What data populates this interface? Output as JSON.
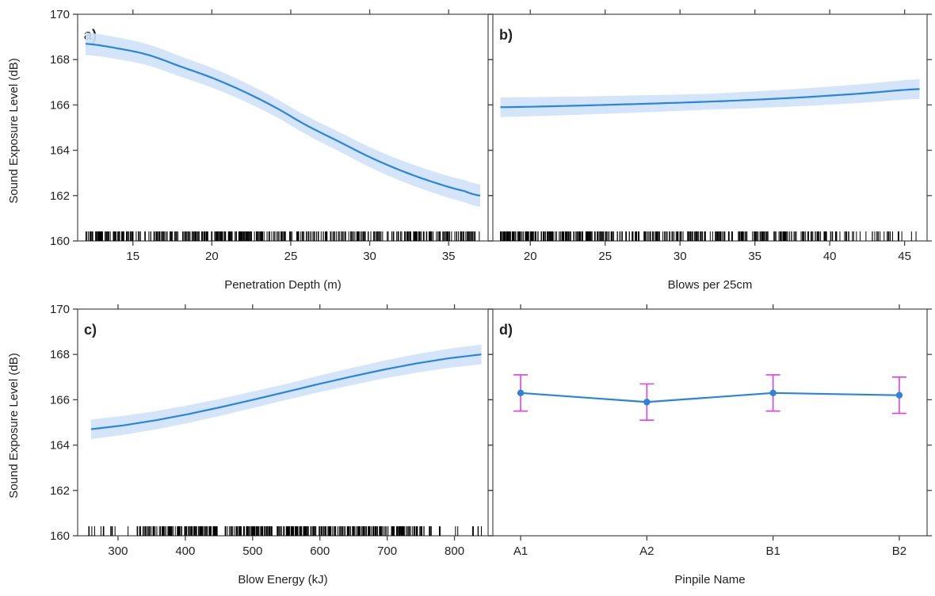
{
  "chart_data": [
    {
      "panel": "a)",
      "type": "line",
      "xlabel": "Penetration Depth (m)",
      "ylabel": "Sound Exposure Level (dB)",
      "xlim": [
        11.5,
        37.5
      ],
      "ylim": [
        160,
        170
      ],
      "xticks": [
        15,
        20,
        25,
        30,
        35
      ],
      "yticks": [
        160,
        162,
        164,
        166,
        168,
        170
      ],
      "x": [
        12,
        14,
        16,
        18,
        20,
        22,
        24,
        26,
        28,
        30,
        32,
        34,
        36,
        37
      ],
      "y": [
        168.7,
        168.5,
        168.2,
        167.7,
        167.2,
        166.6,
        165.9,
        165.1,
        164.4,
        163.7,
        163.1,
        162.6,
        162.2,
        162.0
      ],
      "ci": 0.4,
      "rug": {
        "from": 12,
        "to": 37,
        "density": "dense"
      }
    },
    {
      "panel": "b)",
      "type": "line",
      "xlabel": "Blows per 25cm",
      "ylabel": "",
      "xlim": [
        17.5,
        46.5
      ],
      "ylim": [
        160,
        170
      ],
      "xticks": [
        20,
        25,
        30,
        35,
        40,
        45
      ],
      "yticks": [
        160,
        162,
        164,
        166,
        168,
        170
      ],
      "x": [
        18,
        22,
        26,
        30,
        34,
        38,
        42,
        46
      ],
      "y": [
        165.9,
        165.95,
        166.02,
        166.1,
        166.2,
        166.33,
        166.5,
        166.7
      ],
      "ci": 0.35,
      "rug": {
        "from": 18,
        "to": 46,
        "density": "dense-left"
      }
    },
    {
      "panel": "c)",
      "type": "line",
      "xlabel": "Blow Energy (kJ)",
      "ylabel": "Sound Exposure Level (dB)",
      "xlim": [
        240,
        850
      ],
      "ylim": [
        160,
        170
      ],
      "xticks": [
        300,
        400,
        500,
        600,
        700,
        800
      ],
      "yticks": [
        160,
        162,
        164,
        166,
        168,
        170
      ],
      "x": [
        260,
        840
      ],
      "y": [
        164.7,
        168.0
      ],
      "ci": 0.35,
      "rug": {
        "from": 255,
        "to": 840,
        "density": "dense-middle"
      }
    },
    {
      "panel": "d)",
      "type": "line",
      "xlabel": "Pinpile Name",
      "ylabel": "",
      "categories": [
        "A1",
        "A2",
        "B1",
        "B2"
      ],
      "ylim": [
        160,
        170
      ],
      "yticks": [
        160,
        162,
        164,
        166,
        168,
        170
      ],
      "values": [
        166.3,
        165.9,
        166.3,
        166.2
      ],
      "lower": [
        165.5,
        165.1,
        165.5,
        165.4
      ],
      "upper": [
        167.1,
        166.7,
        167.1,
        167.0
      ]
    }
  ],
  "colors": {
    "line": "#2b84dc",
    "band": "#cfe2f8",
    "errorbar": "#e040e0",
    "rug": "#000000"
  }
}
